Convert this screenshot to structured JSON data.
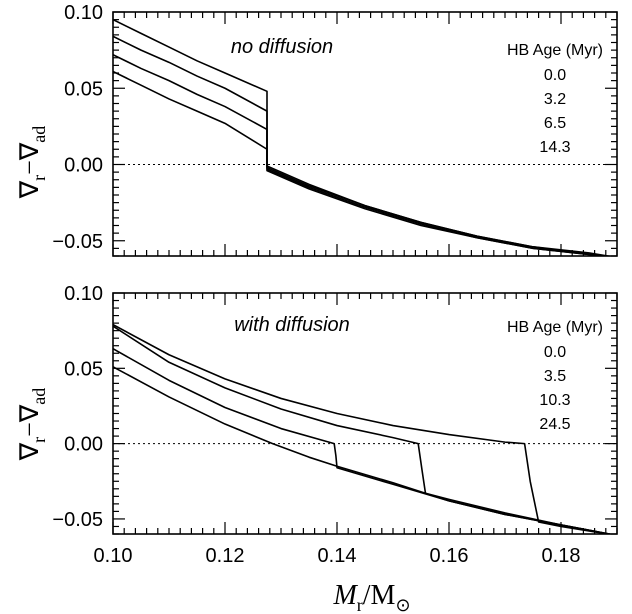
{
  "chart_data": [
    {
      "type": "line",
      "panel_label": "no diffusion",
      "legend_title": "HB Age (Myr)",
      "xlim": [
        0.1,
        0.19
      ],
      "ylim": [
        -0.06,
        0.1
      ],
      "x_ticks": [
        "0.10",
        "0.12",
        "0.14",
        "0.16",
        "0.18"
      ],
      "x_tick_values": [
        0.1,
        0.12,
        0.14,
        0.16,
        0.18
      ],
      "y_ticks": [
        "0.10",
        "0.05",
        "0.00",
        "−0.05"
      ],
      "y_tick_values": [
        0.1,
        0.05,
        0.0,
        -0.05
      ],
      "ylabel": {
        "main": "∇",
        "sub1": "r",
        "minus": "−∇",
        "sub2": "ad"
      },
      "reference_line_y": 0.0,
      "series": [
        {
          "name": "0.0",
          "x": [
            0.1,
            0.105,
            0.11,
            0.115,
            0.12,
            0.1275,
            0.1275,
            0.135,
            0.145,
            0.155,
            0.165,
            0.175,
            0.185,
            0.19
          ],
          "y": [
            0.095,
            0.086,
            0.077,
            0.068,
            0.06,
            0.048,
            -0.001,
            -0.013,
            -0.027,
            -0.038,
            -0.047,
            -0.054,
            -0.058,
            -0.061
          ]
        },
        {
          "name": "3.2",
          "x": [
            0.1,
            0.105,
            0.11,
            0.115,
            0.12,
            0.1275,
            0.1275,
            0.135,
            0.145,
            0.155,
            0.165,
            0.175,
            0.185,
            0.19
          ],
          "y": [
            0.084,
            0.075,
            0.067,
            0.058,
            0.05,
            0.035,
            -0.002,
            -0.014,
            -0.027,
            -0.038,
            -0.047,
            -0.054,
            -0.059,
            -0.061
          ]
        },
        {
          "name": "6.5",
          "x": [
            0.1,
            0.105,
            0.11,
            0.115,
            0.12,
            0.1275,
            0.1275,
            0.135,
            0.145,
            0.155,
            0.165,
            0.175,
            0.185,
            0.19
          ],
          "y": [
            0.072,
            0.063,
            0.055,
            0.046,
            0.038,
            0.023,
            -0.003,
            -0.015,
            -0.028,
            -0.039,
            -0.048,
            -0.055,
            -0.059,
            -0.061
          ]
        },
        {
          "name": "14.3",
          "x": [
            0.1,
            0.105,
            0.11,
            0.115,
            0.12,
            0.1275,
            0.1275,
            0.135,
            0.145,
            0.155,
            0.165,
            0.175,
            0.185,
            0.19
          ],
          "y": [
            0.061,
            0.052,
            0.043,
            0.035,
            0.027,
            0.01,
            -0.004,
            -0.016,
            -0.029,
            -0.04,
            -0.048,
            -0.055,
            -0.059,
            -0.061
          ]
        }
      ],
      "legend_placement": "top-right"
    },
    {
      "type": "line",
      "panel_label": "with diffusion",
      "legend_title": "HB Age (Myr)",
      "xlim": [
        0.1,
        0.19
      ],
      "ylim": [
        -0.06,
        0.1
      ],
      "x_ticks": [
        "0.10",
        "0.12",
        "0.14",
        "0.16",
        "0.18"
      ],
      "x_tick_values": [
        0.1,
        0.12,
        0.14,
        0.16,
        0.18
      ],
      "y_ticks": [
        "0.10",
        "0.05",
        "0.00",
        "−0.05"
      ],
      "y_tick_values": [
        0.1,
        0.05,
        0.0,
        -0.05
      ],
      "xlabel": {
        "main": "M",
        "sub1": "r",
        "sep": "/M",
        "sub2": "⊙"
      },
      "ylabel": {
        "main": "∇",
        "sub1": "r",
        "minus": "−∇",
        "sub2": "ad"
      },
      "reference_line_y": 0.0,
      "series": [
        {
          "name": "0.0",
          "x": [
            0.1,
            0.11,
            0.12,
            0.13,
            0.14,
            0.15,
            0.16,
            0.17,
            0.1735,
            0.1745,
            0.176,
            0.18,
            0.185,
            0.19
          ],
          "y": [
            0.079,
            0.059,
            0.043,
            0.03,
            0.02,
            0.012,
            0.006,
            0.001,
            0.0,
            -0.025,
            -0.052,
            -0.055,
            -0.058,
            -0.061
          ]
        },
        {
          "name": "3.5",
          "x": [
            0.1,
            0.11,
            0.12,
            0.13,
            0.14,
            0.15,
            0.1545,
            0.1552,
            0.1558,
            0.16,
            0.17,
            0.18,
            0.19
          ],
          "y": [
            0.078,
            0.054,
            0.037,
            0.023,
            0.012,
            0.004,
            0.0,
            -0.018,
            -0.033,
            -0.037,
            -0.046,
            -0.054,
            -0.061
          ]
        },
        {
          "name": "10.3",
          "x": [
            0.1,
            0.11,
            0.12,
            0.13,
            0.1395,
            0.1398,
            0.14,
            0.15,
            0.16,
            0.17,
            0.18,
            0.19
          ],
          "y": [
            0.063,
            0.042,
            0.024,
            0.01,
            0.0,
            -0.008,
            -0.016,
            -0.027,
            -0.038,
            -0.047,
            -0.054,
            -0.061
          ]
        },
        {
          "name": "24.5",
          "x": [
            0.1,
            0.11,
            0.12,
            0.1285,
            0.135,
            0.14,
            0.15,
            0.16,
            0.17,
            0.18,
            0.19
          ],
          "y": [
            0.051,
            0.031,
            0.013,
            0.0,
            -0.009,
            -0.015,
            -0.026,
            -0.038,
            -0.047,
            -0.054,
            -0.061
          ]
        }
      ],
      "legend_placement": "top-right"
    }
  ]
}
